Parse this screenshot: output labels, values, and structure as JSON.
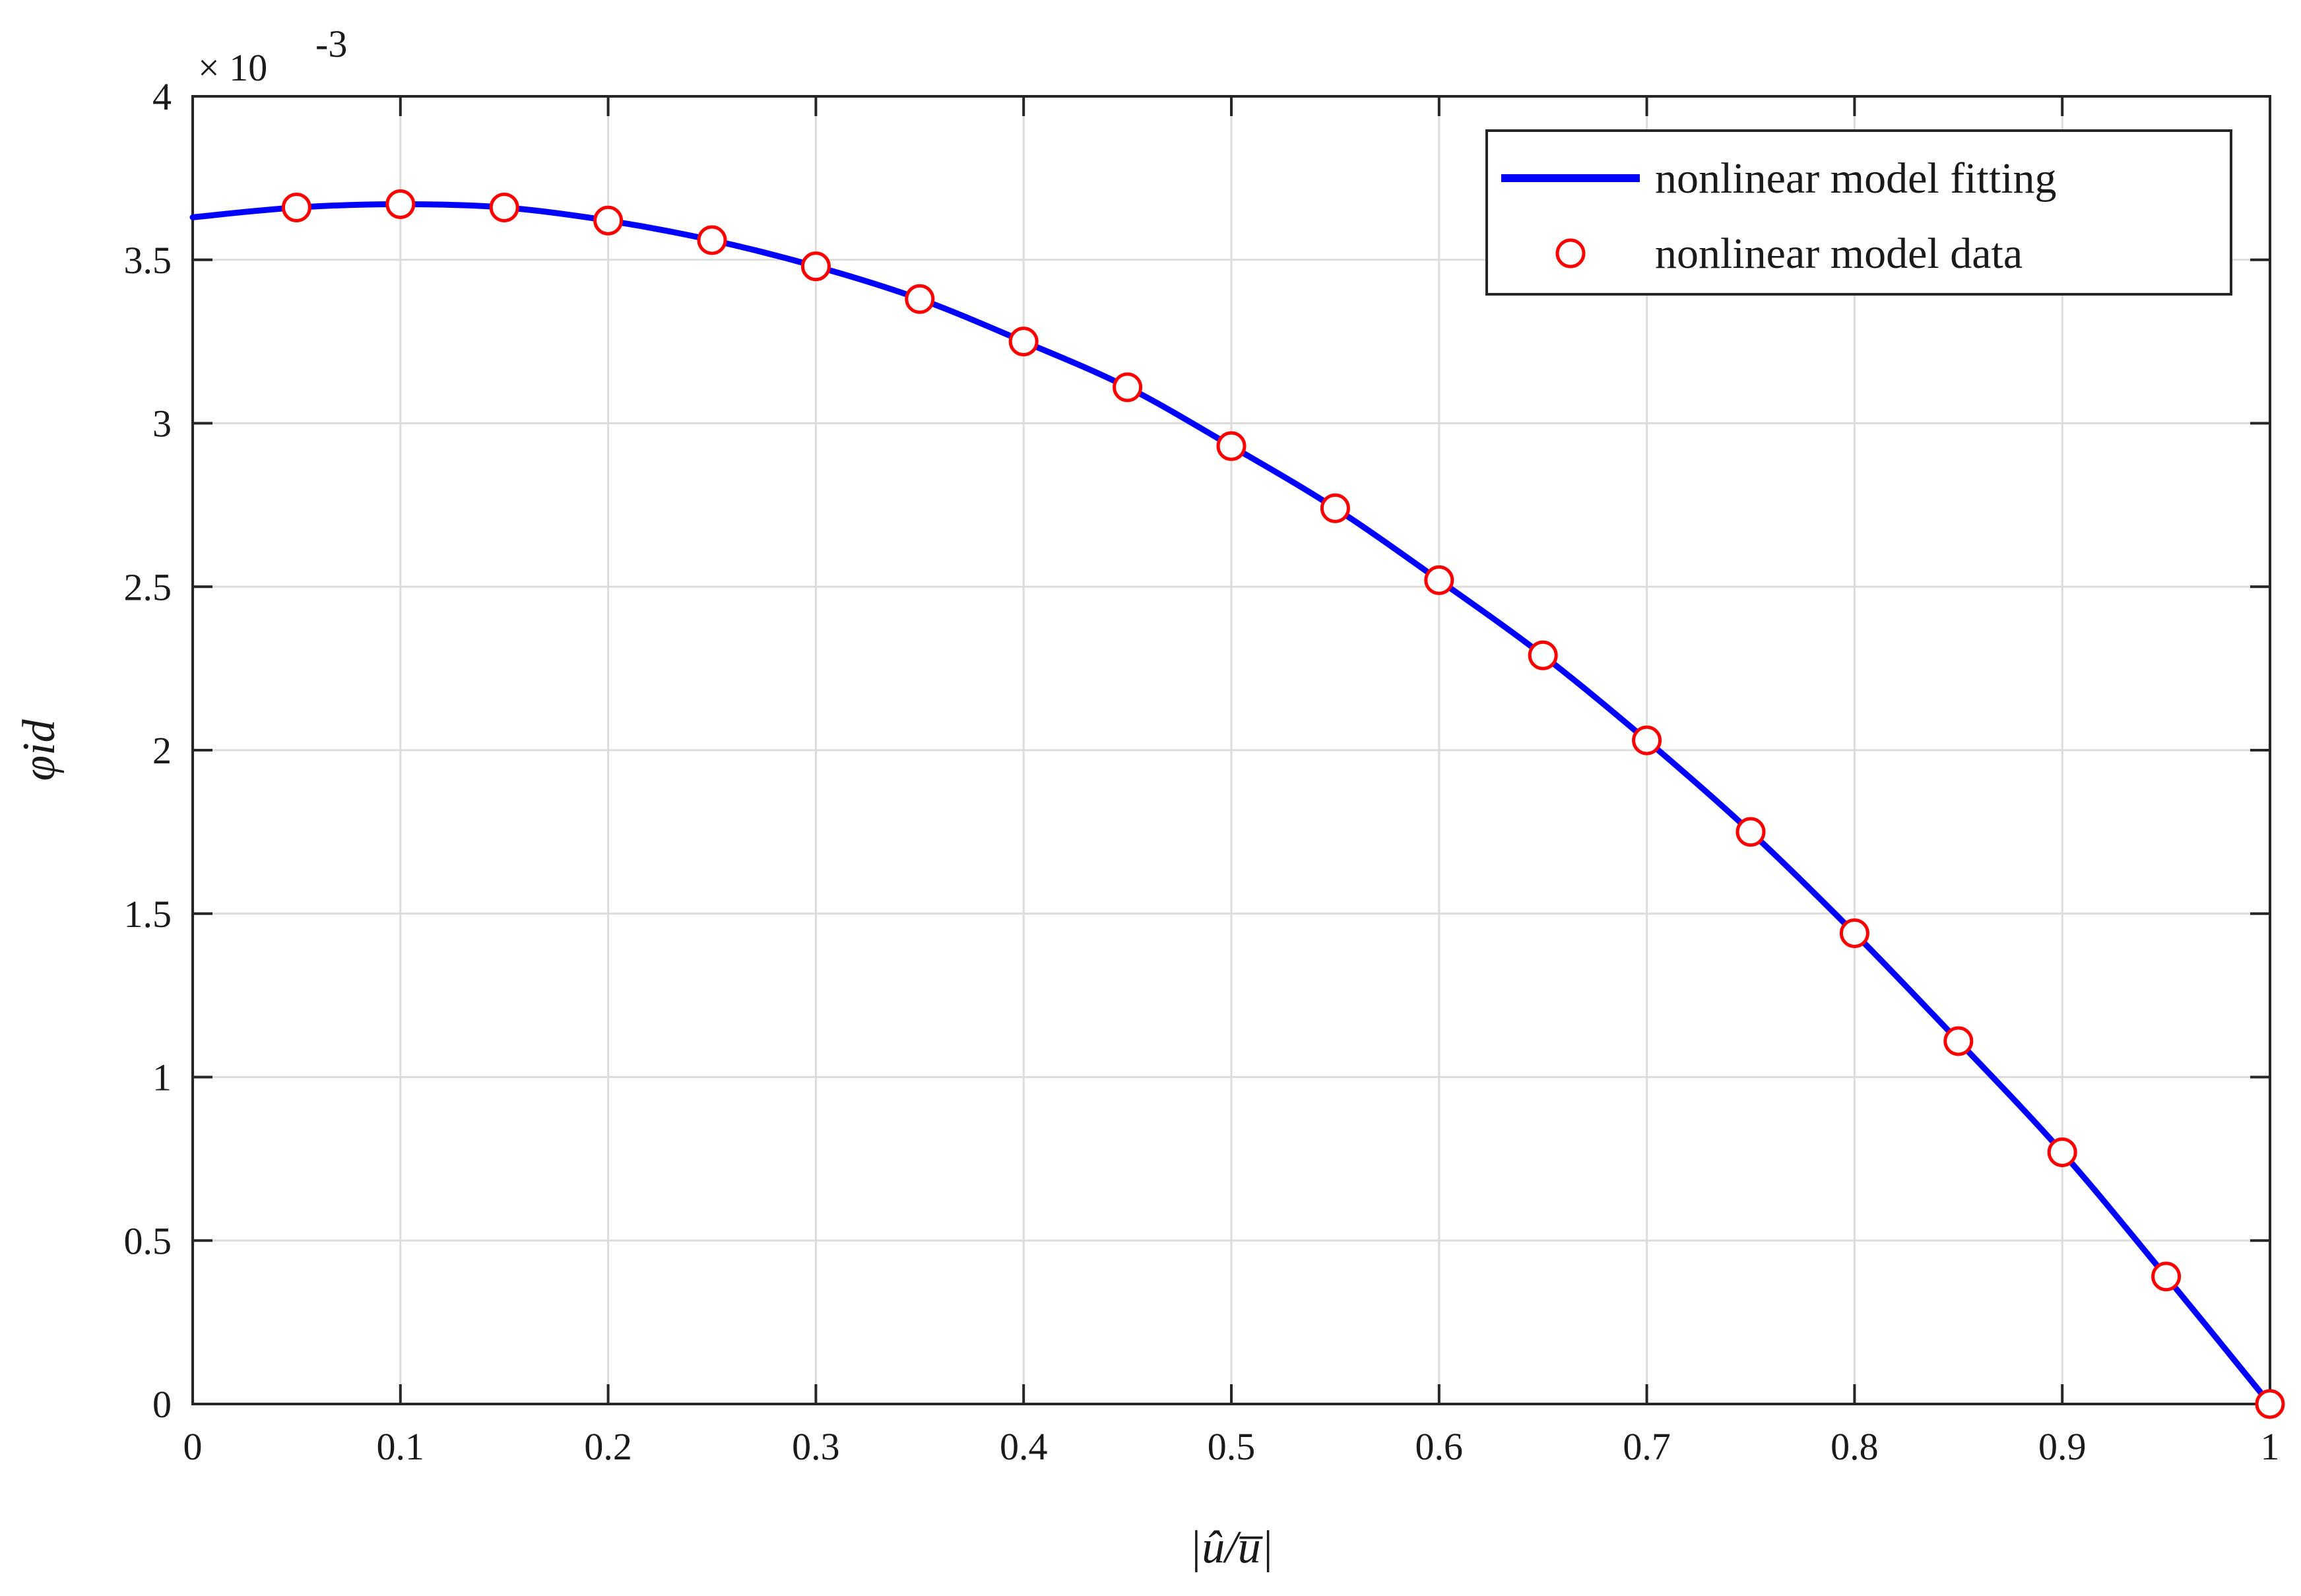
{
  "chart_data": {
    "type": "line",
    "title": "",
    "xlabel": "|û/u̅|",
    "ylabel": "φid",
    "y_exponent_label": "× 10",
    "y_exponent_power": "-3",
    "xlim": [
      0,
      1
    ],
    "ylim": [
      0,
      4
    ],
    "x_ticks": [
      "0",
      "0.1",
      "0.2",
      "0.3",
      "0.4",
      "0.5",
      "0.6",
      "0.7",
      "0.8",
      "0.9",
      "1"
    ],
    "y_ticks": [
      "0",
      "0.5",
      "1",
      "1.5",
      "2",
      "2.5",
      "3",
      "3.5",
      "4"
    ],
    "grid": true,
    "legend_position": "top-right",
    "series": [
      {
        "name": "nonlinear model fitting",
        "style": "line",
        "color": "#0000ff",
        "x": [
          0,
          0.05,
          0.1,
          0.15,
          0.2,
          0.25,
          0.3,
          0.35,
          0.4,
          0.45,
          0.5,
          0.55,
          0.6,
          0.65,
          0.7,
          0.75,
          0.8,
          0.85,
          0.9,
          0.95,
          1.0
        ],
        "y": [
          3.63,
          3.66,
          3.67,
          3.66,
          3.62,
          3.56,
          3.48,
          3.38,
          3.25,
          3.11,
          2.93,
          2.74,
          2.52,
          2.29,
          2.03,
          1.75,
          1.44,
          1.11,
          0.77,
          0.39,
          0.0
        ]
      },
      {
        "name": "nonlinear model data",
        "style": "marker",
        "color": "#ff0000",
        "x": [
          0.05,
          0.1,
          0.15,
          0.2,
          0.25,
          0.3,
          0.35,
          0.4,
          0.45,
          0.5,
          0.55,
          0.6,
          0.65,
          0.7,
          0.75,
          0.8,
          0.85,
          0.9,
          0.95,
          1.0
        ],
        "y": [
          3.66,
          3.67,
          3.66,
          3.62,
          3.56,
          3.48,
          3.38,
          3.25,
          3.11,
          2.93,
          2.74,
          2.52,
          2.29,
          2.03,
          1.75,
          1.44,
          1.11,
          0.77,
          0.39,
          0.0
        ]
      }
    ]
  }
}
